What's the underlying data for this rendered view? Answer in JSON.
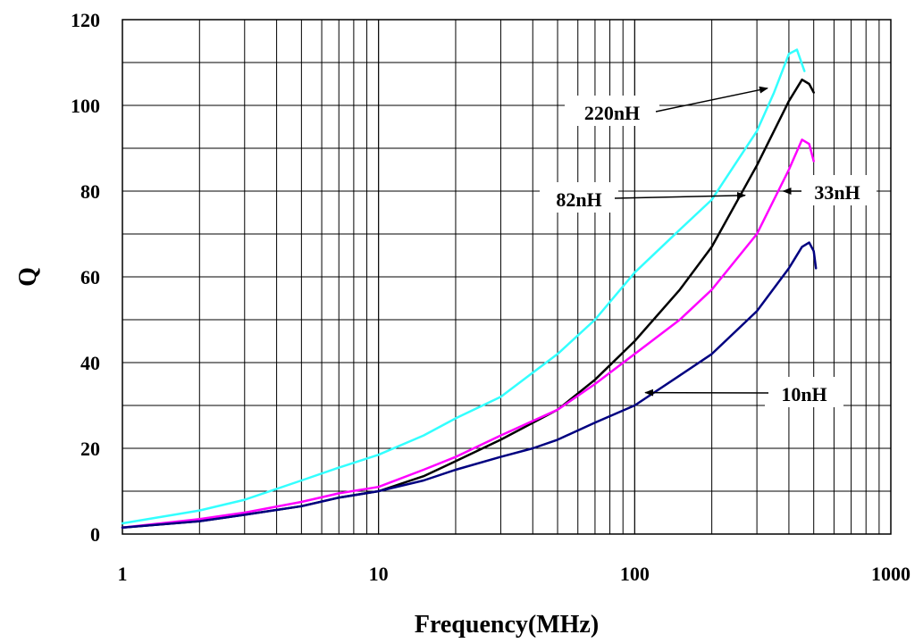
{
  "chart_data": {
    "type": "line",
    "title": "",
    "xlabel": "Frequency(MHz)",
    "ylabel": "Q",
    "x_scale": "log",
    "xlim": [
      1,
      1000
    ],
    "ylim": [
      0,
      120
    ],
    "grid": true,
    "x_ticks": [
      {
        "value": 1,
        "label": "1"
      },
      {
        "value": 10,
        "label": "10"
      },
      {
        "value": 100,
        "label": "100"
      },
      {
        "value": 1000,
        "label": "1000"
      }
    ],
    "y_ticks": [
      {
        "value": 0,
        "label": "0"
      },
      {
        "value": 20,
        "label": "20"
      },
      {
        "value": 40,
        "label": "40"
      },
      {
        "value": 60,
        "label": "60"
      },
      {
        "value": 80,
        "label": "80"
      },
      {
        "value": 100,
        "label": "100"
      },
      {
        "value": 120,
        "label": "120"
      }
    ],
    "series": [
      {
        "name": "220nH",
        "color": "#33ffff",
        "x": [
          1,
          2,
          3,
          5,
          7,
          10,
          15,
          20,
          30,
          50,
          70,
          100,
          150,
          200,
          300,
          350,
          400,
          430,
          460
        ],
        "y": [
          2.5,
          5.5,
          8,
          12.5,
          15.5,
          18.5,
          23,
          27,
          32,
          42,
          50,
          61,
          71,
          78,
          94,
          103,
          112,
          113,
          108
        ]
      },
      {
        "name": "82nH",
        "color": "#000000",
        "x": [
          1,
          2,
          3,
          5,
          7,
          10,
          15,
          20,
          30,
          50,
          70,
          100,
          150,
          200,
          300,
          400,
          450,
          480,
          500
        ],
        "y": [
          1.5,
          3,
          4.5,
          6.5,
          8.5,
          10,
          13.5,
          17,
          22,
          29,
          36,
          45,
          57,
          67,
          86,
          101,
          106,
          105,
          103
        ]
      },
      {
        "name": "33nH",
        "color": "#ff00ff",
        "x": [
          1,
          2,
          3,
          5,
          7,
          10,
          15,
          20,
          30,
          50,
          70,
          100,
          150,
          200,
          300,
          400,
          450,
          480,
          500
        ],
        "y": [
          1.5,
          3.5,
          5,
          7.5,
          9.5,
          11,
          15,
          18,
          23,
          29,
          35,
          42,
          50,
          57,
          70,
          85,
          92,
          91,
          87
        ]
      },
      {
        "name": "10nH",
        "color": "#000080",
        "x": [
          1,
          2,
          3,
          5,
          7,
          10,
          15,
          20,
          30,
          40,
          50,
          70,
          100,
          150,
          200,
          300,
          400,
          450,
          480,
          500,
          510
        ],
        "y": [
          1.5,
          3,
          4.5,
          6.5,
          8.5,
          10,
          12.5,
          15,
          18,
          20,
          22,
          26,
          30,
          37,
          42,
          52,
          62,
          67,
          68,
          66,
          62
        ]
      }
    ],
    "annotations": [
      {
        "text": "220nH",
        "arrow_to": {
          "x": 330,
          "y": 104
        }
      },
      {
        "text": "82nH",
        "arrow_to": {
          "x": 270,
          "y": 79
        }
      },
      {
        "text": "33nH",
        "arrow_to": {
          "x": 380,
          "y": 80
        }
      },
      {
        "text": "10nH",
        "arrow_to": {
          "x": 110,
          "y": 33
        }
      }
    ]
  }
}
